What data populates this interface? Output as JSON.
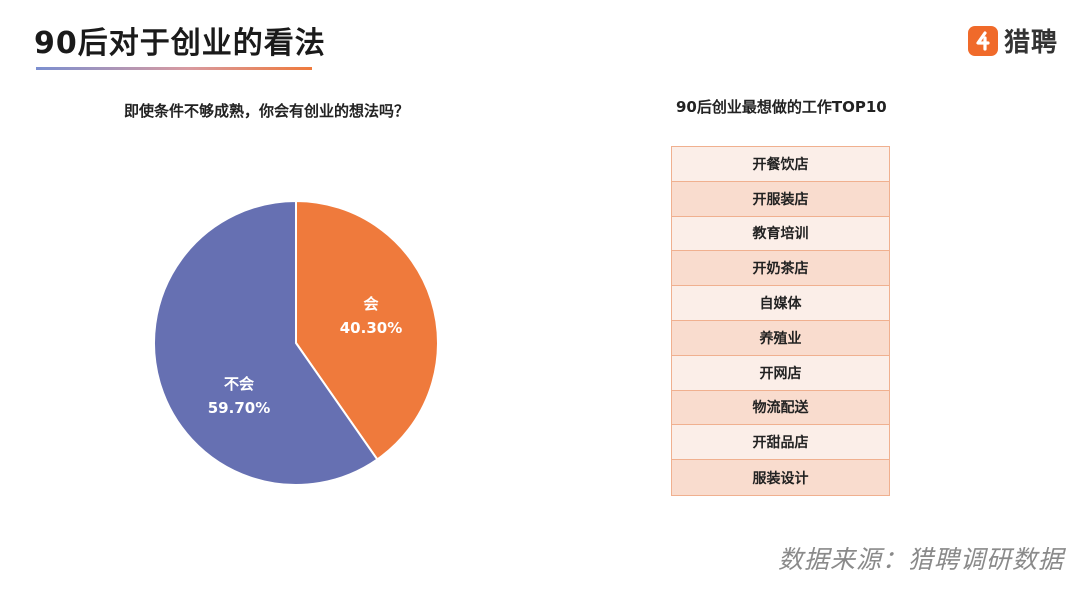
{
  "header": {
    "title": "90后对于创业的看法",
    "brand_name": "猎聘",
    "brand_icon": "liepin-logo-icon",
    "brand_color": "#f06a2a"
  },
  "chart_data": [
    {
      "type": "pie",
      "title": "即使条件不够成熟，你会有创业的想法吗？",
      "slices": [
        {
          "label": "会",
          "value": 40.3,
          "value_label": "40.30%",
          "color": "#ef7a3c"
        },
        {
          "label": "不会",
          "value": 59.7,
          "value_label": "59.70%",
          "color": "#6670b2"
        }
      ]
    },
    {
      "type": "table",
      "title": "90后创业最想做的工作TOP10",
      "rows": [
        "开餐饮店",
        "开服装店",
        "教育培训",
        "开奶茶店",
        "自媒体",
        "养殖业",
        "开网店",
        "物流配送",
        "开甜品店",
        "服装设计"
      ],
      "row_colors": [
        "#fbeee8",
        "#f9dcce"
      ],
      "border_color": "#f0b08f"
    }
  ],
  "footer": {
    "source": "数据来源：猎聘调研数据"
  }
}
